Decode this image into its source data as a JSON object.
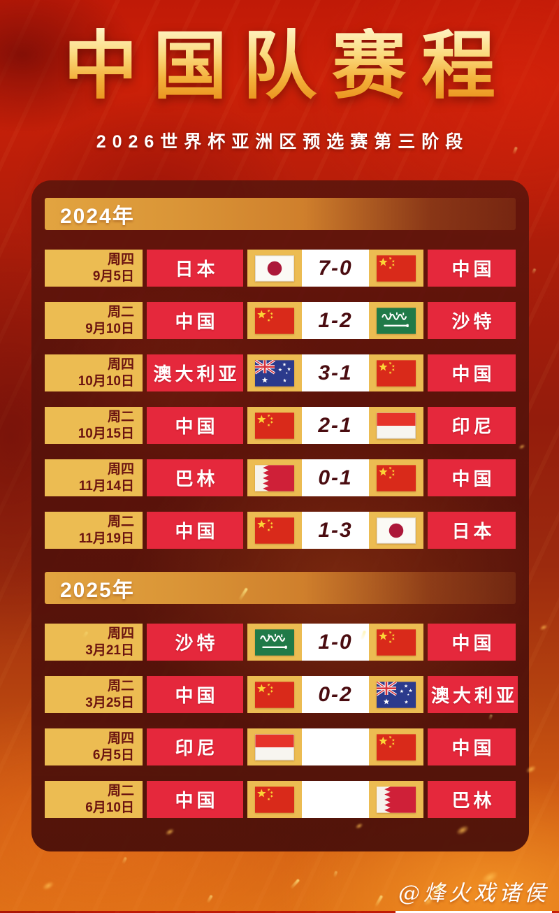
{
  "page": {
    "title": "中国队赛程",
    "subtitle": "2026世界杯亚洲区预选赛第三阶段",
    "watermark": "@烽火戏诸侯"
  },
  "colors": {
    "gold": "#ecbc52",
    "team_red": "#e5283c",
    "score_text": "#4a0c10",
    "date_text": "#6b1410",
    "title_gold_top": "#fff3c4",
    "title_gold_bottom": "#e88d18",
    "panel_maroon": "#521109",
    "background_red": "#ae1d0a",
    "background_orange": "#dd6f16"
  },
  "sections": [
    {
      "year_label": "2024年",
      "matches": [
        {
          "weekday": "周四",
          "date": "9月5日",
          "home": "日本",
          "home_flag": "jp",
          "score": "7-0",
          "away_flag": "cn",
          "away": "中国"
        },
        {
          "weekday": "周二",
          "date": "9月10日",
          "home": "中国",
          "home_flag": "cn",
          "score": "1-2",
          "away_flag": "sa",
          "away": "沙特"
        },
        {
          "weekday": "周四",
          "date": "10月10日",
          "home": "澳大利亚",
          "home_flag": "au",
          "score": "3-1",
          "away_flag": "cn",
          "away": "中国"
        },
        {
          "weekday": "周二",
          "date": "10月15日",
          "home": "中国",
          "home_flag": "cn",
          "score": "2-1",
          "away_flag": "id",
          "away": "印尼"
        },
        {
          "weekday": "周四",
          "date": "11月14日",
          "home": "巴林",
          "home_flag": "bh",
          "score": "0-1",
          "away_flag": "cn",
          "away": "中国"
        },
        {
          "weekday": "周二",
          "date": "11月19日",
          "home": "中国",
          "home_flag": "cn",
          "score": "1-3",
          "away_flag": "jp",
          "away": "日本"
        }
      ]
    },
    {
      "year_label": "2025年",
      "matches": [
        {
          "weekday": "周四",
          "date": "3月21日",
          "home": "沙特",
          "home_flag": "sa",
          "score": "1-0",
          "away_flag": "cn",
          "away": "中国"
        },
        {
          "weekday": "周二",
          "date": "3月25日",
          "home": "中国",
          "home_flag": "cn",
          "score": "0-2",
          "away_flag": "au",
          "away": "澳大利亚"
        },
        {
          "weekday": "周四",
          "date": "6月5日",
          "home": "印尼",
          "home_flag": "id",
          "score": "",
          "away_flag": "cn",
          "away": "中国"
        },
        {
          "weekday": "周二",
          "date": "6月10日",
          "home": "中国",
          "home_flag": "cn",
          "score": "",
          "away_flag": "bh",
          "away": "巴林"
        }
      ]
    }
  ]
}
